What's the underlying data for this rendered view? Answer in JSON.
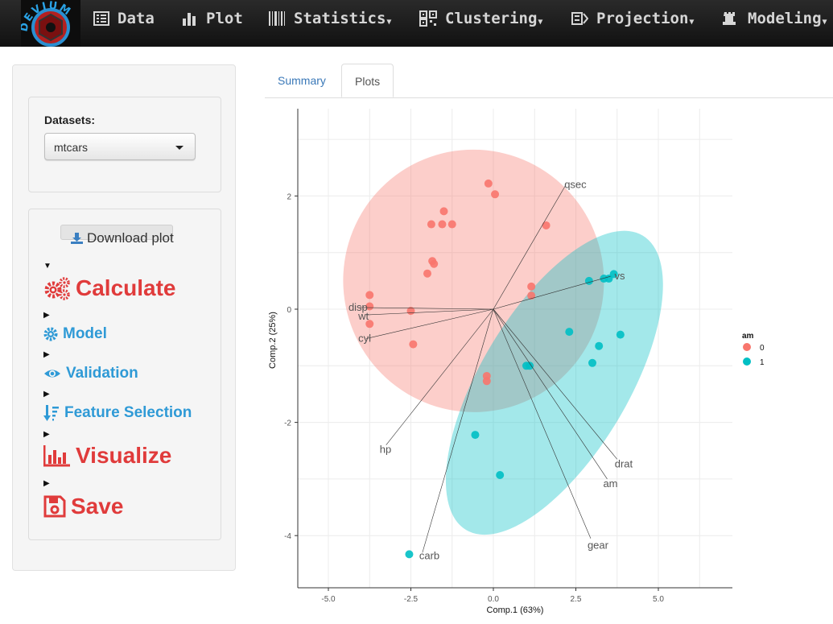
{
  "navbar": {
    "logo_text": "DEVIUM",
    "items": [
      {
        "label": "Data",
        "icon": "list-icon",
        "dropdown": false
      },
      {
        "label": "Plot",
        "icon": "bar-chart-icon",
        "dropdown": false
      },
      {
        "label": "Statistics",
        "icon": "barcode-icon",
        "dropdown": true
      },
      {
        "label": "Clustering",
        "icon": "qrcode-icon",
        "dropdown": true
      },
      {
        "label": "Projection",
        "icon": "projection-icon",
        "dropdown": true
      },
      {
        "label": "Modeling",
        "icon": "rook-icon",
        "dropdown": true
      }
    ]
  },
  "sidebar": {
    "datasets_label": "Datasets:",
    "dataset_selected": "mtcars",
    "download_label": "Download plot",
    "sections": [
      {
        "label": "Calculate",
        "icon": "cogs-icon"
      },
      {
        "label": "Model",
        "icon": "gear-icon"
      },
      {
        "label": "Validation",
        "icon": "eye-icon"
      },
      {
        "label": "Feature Selection",
        "icon": "sort-icon"
      },
      {
        "label": "Visualize",
        "icon": "bar-chart-icon"
      },
      {
        "label": "Save",
        "icon": "floppy-icon"
      }
    ]
  },
  "tabs": [
    {
      "label": "Summary",
      "active": false
    },
    {
      "label": "Plots",
      "active": true
    }
  ],
  "chart_data": {
    "type": "scatter",
    "xlabel": "Comp.1 (63%)",
    "ylabel": "Comp.2 (25%)",
    "xlim": [
      -6,
      7.2
    ],
    "ylim": [
      -4.9,
      3.6
    ],
    "x_ticks": [
      -5,
      -2.5,
      0,
      2.5,
      5
    ],
    "y_ticks": [
      -4,
      -2,
      0,
      2
    ],
    "x_tick_labels": [
      "-5.0",
      "-2.5",
      "0.0",
      "2.5",
      "5.0"
    ],
    "y_tick_labels": [
      "-4",
      "-2",
      "0",
      "2"
    ],
    "grid": true,
    "legend": {
      "title": "am",
      "position": "right",
      "entries": [
        "0",
        "1"
      ]
    },
    "colors": {
      "group0": "#F8766D",
      "group1": "#00BFC4"
    },
    "series": [
      {
        "name": "0",
        "points": [
          [
            -0.15,
            2.22
          ],
          [
            0.05,
            2.03
          ],
          [
            -1.5,
            1.73
          ],
          [
            -1.88,
            1.5
          ],
          [
            -1.55,
            1.5
          ],
          [
            -1.25,
            1.5
          ],
          [
            1.6,
            1.48
          ],
          [
            -1.85,
            0.85
          ],
          [
            -1.8,
            0.8
          ],
          [
            -2.0,
            0.63
          ],
          [
            1.15,
            0.4
          ],
          [
            1.15,
            0.24
          ],
          [
            -3.75,
            0.25
          ],
          [
            -3.75,
            0.05
          ],
          [
            -2.5,
            -0.03
          ],
          [
            -3.75,
            -0.26
          ],
          [
            -2.43,
            -0.62
          ],
          [
            -0.2,
            -1.18
          ],
          [
            -0.2,
            -1.27
          ]
        ]
      },
      {
        "name": "1",
        "points": [
          [
            3.65,
            0.62
          ],
          [
            3.35,
            0.54
          ],
          [
            3.5,
            0.54
          ],
          [
            2.9,
            0.5
          ],
          [
            2.3,
            -0.4
          ],
          [
            3.85,
            -0.45
          ],
          [
            3.2,
            -0.65
          ],
          [
            3.0,
            -0.95
          ],
          [
            1.0,
            -1.0
          ],
          [
            1.1,
            -1.0
          ],
          [
            -0.55,
            -2.22
          ],
          [
            0.2,
            -2.93
          ],
          [
            -2.55,
            -4.33
          ]
        ]
      }
    ],
    "loadings": [
      {
        "label": "qsec",
        "x": 2.2,
        "y": 2.2
      },
      {
        "label": "vs",
        "x": 3.55,
        "y": 0.58
      },
      {
        "label": "disp",
        "x": -4.05,
        "y": 0.03
      },
      {
        "label": "wt",
        "x": -3.85,
        "y": -0.1
      },
      {
        "label": "cyl",
        "x": -3.85,
        "y": -0.52
      },
      {
        "label": "hp",
        "x": -3.25,
        "y": -2.4
      },
      {
        "label": "drat",
        "x": 3.75,
        "y": -2.65
      },
      {
        "label": "am",
        "x": 3.45,
        "y": -3.0
      },
      {
        "label": "gear",
        "x": 2.95,
        "y": -4.05
      },
      {
        "label": "carb",
        "x": -2.15,
        "y": -4.3
      }
    ],
    "ellipses": [
      {
        "group": "0",
        "cx": -0.6,
        "cy": 0.5,
        "rx": 3.95,
        "ry": 2.32,
        "angle": -14
      },
      {
        "group": "1",
        "cx": 1.85,
        "cy": -1.3,
        "rx": 5.2,
        "ry": 1.3,
        "angle": -59
      }
    ]
  }
}
